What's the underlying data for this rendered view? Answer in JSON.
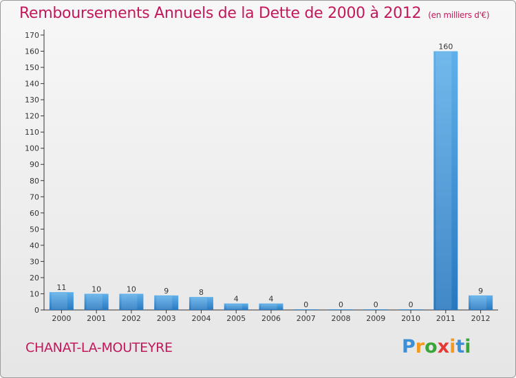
{
  "header": {
    "title": "Remboursements Annuels de la Dette de 2000 à 2012",
    "subtitle": "(en milliers d'€)"
  },
  "footer": {
    "place": "CHANAT-LA-MOUTEYRE",
    "logo_letters": [
      "P",
      "r",
      "o",
      "x",
      "i",
      "t",
      "i"
    ],
    "logo_colors": [
      "#3a8fd6",
      "#f39a1e",
      "#3aa63a",
      "#e53935",
      "#f39a1e",
      "#3a8fd6",
      "#3aa63a"
    ]
  },
  "chart_data": {
    "type": "bar",
    "categories": [
      "2000",
      "2001",
      "2002",
      "2003",
      "2004",
      "2005",
      "2006",
      "2007",
      "2008",
      "2009",
      "2010",
      "2011",
      "2012"
    ],
    "values": [
      11,
      10,
      10,
      9,
      8,
      4,
      4,
      0,
      0,
      0,
      0,
      160,
      9
    ],
    "data_labels": [
      "11",
      "10",
      "10",
      "9",
      "8",
      "4",
      "4",
      "0",
      "0",
      "0",
      "0",
      "160",
      "9"
    ],
    "ylim": [
      0,
      170
    ],
    "yticks": [
      0,
      10,
      20,
      30,
      40,
      50,
      60,
      70,
      80,
      90,
      100,
      110,
      120,
      130,
      140,
      150,
      160,
      170
    ],
    "grid": false,
    "bar_color": "#3a8fd6",
    "bar_color_light": "#5fb0ea"
  }
}
